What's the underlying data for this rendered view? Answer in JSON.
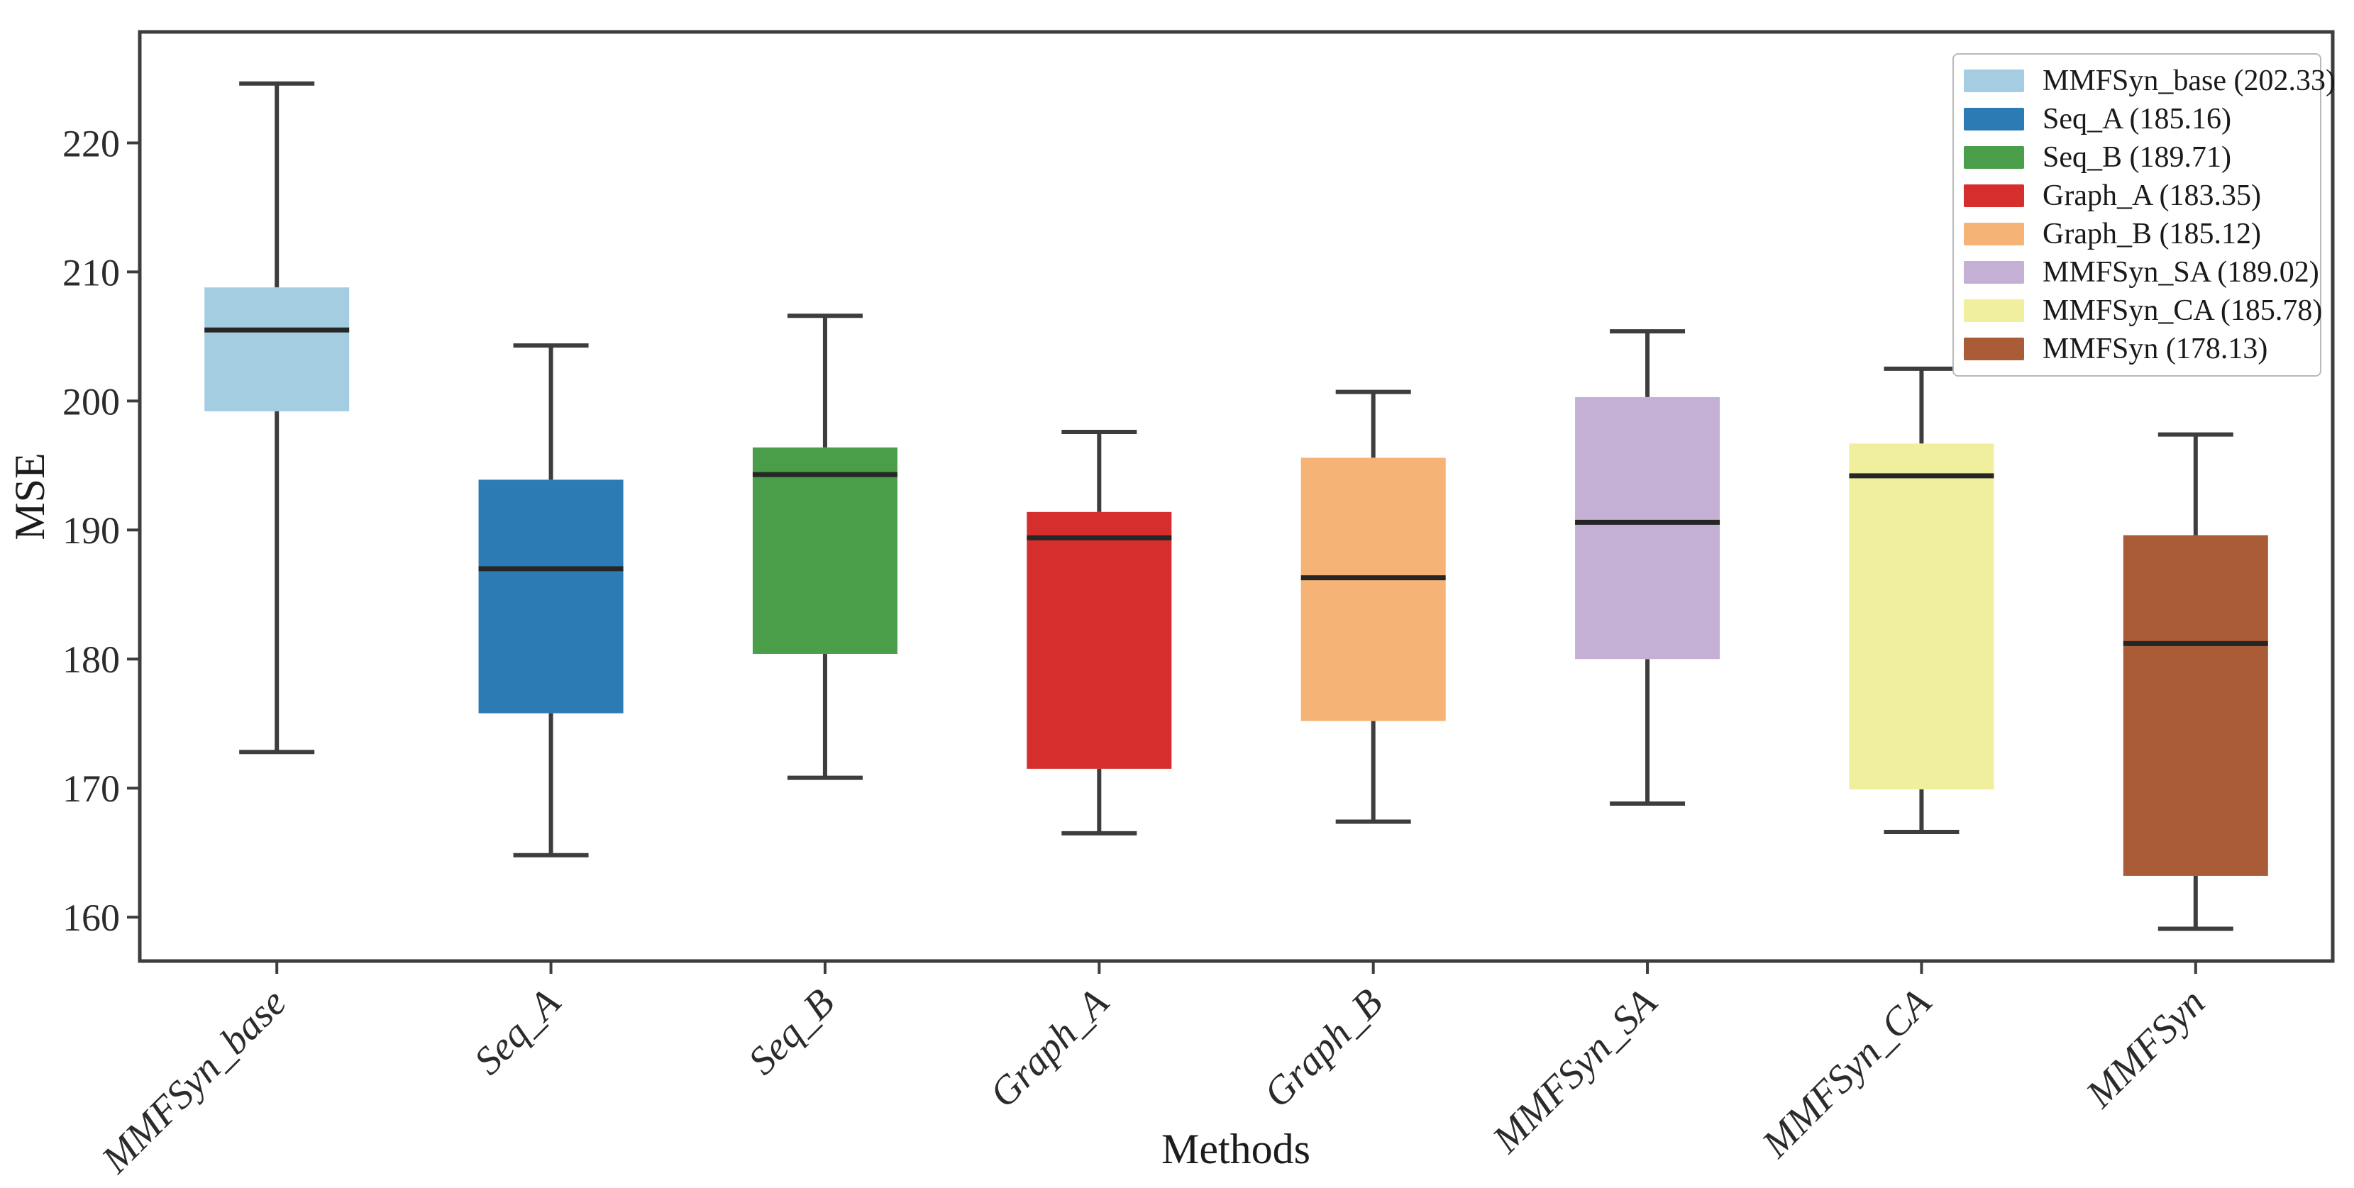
{
  "figure": {
    "background": "#ffffff"
  },
  "chart_data": {
    "type": "box",
    "title": "",
    "xlabel": "Methods",
    "ylabel": "MSE",
    "ylim": [
      156.6,
      228.6
    ],
    "yticks": [
      160,
      170,
      180,
      190,
      200,
      210,
      220
    ],
    "grid": false,
    "legend_position": "upper right",
    "axis_color": "#3d3d3d",
    "median_color": "#262626",
    "tick_label_color": "#2b2b2b",
    "categories": [
      "MMFSyn_base",
      "Seq_A",
      "Seq_B",
      "Graph_A",
      "Graph_B",
      "MMFSyn_SA",
      "MMFSyn_CA",
      "MMFSyn"
    ],
    "series": [
      {
        "name": "MMFSyn_base",
        "mean": "202.33",
        "legend_label": "MMFSyn_base (202.33)",
        "color": "#a4cde2",
        "whisker_low": 172.8,
        "q1": 199.2,
        "median": 205.5,
        "q3": 208.8,
        "whisker_high": 224.6
      },
      {
        "name": "Seq_A",
        "mean": "185.16",
        "legend_label": "Seq_A (185.16)",
        "color": "#2c7bb5",
        "whisker_low": 164.8,
        "q1": 175.8,
        "median": 187.0,
        "q3": 193.9,
        "whisker_high": 204.3
      },
      {
        "name": "Seq_B",
        "mean": "189.71",
        "legend_label": "Seq_B (189.71)",
        "color": "#4a9d49",
        "whisker_low": 170.8,
        "q1": 180.4,
        "median": 194.3,
        "q3": 196.4,
        "whisker_high": 206.6
      },
      {
        "name": "Graph_A",
        "mean": "183.35",
        "legend_label": "Graph_A (183.35)",
        "color": "#d62e2c",
        "whisker_low": 166.5,
        "q1": 171.5,
        "median": 189.4,
        "q3": 191.4,
        "whisker_high": 197.6
      },
      {
        "name": "Graph_B",
        "mean": "185.12",
        "legend_label": "Graph_B (185.12)",
        "color": "#f5b375",
        "whisker_low": 167.4,
        "q1": 175.2,
        "median": 186.3,
        "q3": 195.6,
        "whisker_high": 200.7
      },
      {
        "name": "MMFSyn_SA",
        "mean": "189.02",
        "legend_label": "MMFSyn_SA (189.02)",
        "color": "#c5b0d5",
        "whisker_low": 168.8,
        "q1": 180.0,
        "median": 190.6,
        "q3": 200.3,
        "whisker_high": 205.4
      },
      {
        "name": "MMFSyn_CA",
        "mean": "185.78",
        "legend_label": "MMFSyn_CA (185.78)",
        "color": "#f0ef9e",
        "whisker_low": 166.6,
        "q1": 169.9,
        "median": 194.2,
        "q3": 196.7,
        "whisker_high": 202.5
      },
      {
        "name": "MMFSyn",
        "mean": "178.13",
        "legend_label": "MMFSyn (178.13)",
        "color": "#a95c35",
        "whisker_low": 159.1,
        "q1": 163.2,
        "median": 181.2,
        "q3": 189.6,
        "whisker_high": 197.4
      }
    ]
  }
}
